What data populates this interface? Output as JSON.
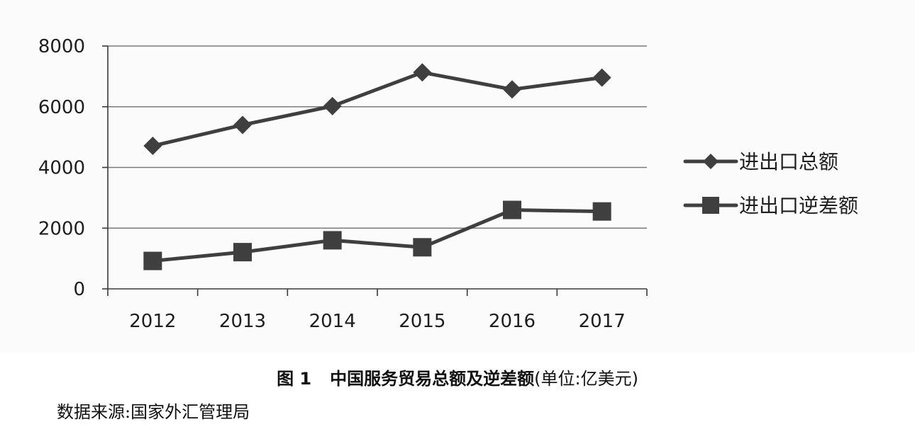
{
  "figure": {
    "label": "图 1",
    "title": "中国服务贸易总额及逆差额",
    "unit_note": "(单位:亿美元)"
  },
  "source_note": "数据来源:国家外汇管理局",
  "chart_data": {
    "type": "line",
    "title": "",
    "xlabel": "",
    "ylabel": "",
    "categories": [
      "2012",
      "2013",
      "2014",
      "2015",
      "2016",
      "2017"
    ],
    "ylim": [
      0,
      8000
    ],
    "yticks": [
      0,
      2000,
      4000,
      6000,
      8000
    ],
    "grid": "horizontal",
    "legend_position": "right",
    "series": [
      {
        "name": "进出口总额",
        "marker": "diamond",
        "values": [
          4710,
          5400,
          6020,
          7130,
          6570,
          6960
        ]
      },
      {
        "name": "进出口逆差额",
        "marker": "square",
        "values": [
          920,
          1210,
          1600,
          1370,
          2600,
          2550
        ]
      }
    ],
    "colors": {
      "line": "#3f3f3f",
      "grid": "#7a7a7a",
      "axis": "#3a3a3a",
      "background": "#fbfbfb"
    }
  }
}
